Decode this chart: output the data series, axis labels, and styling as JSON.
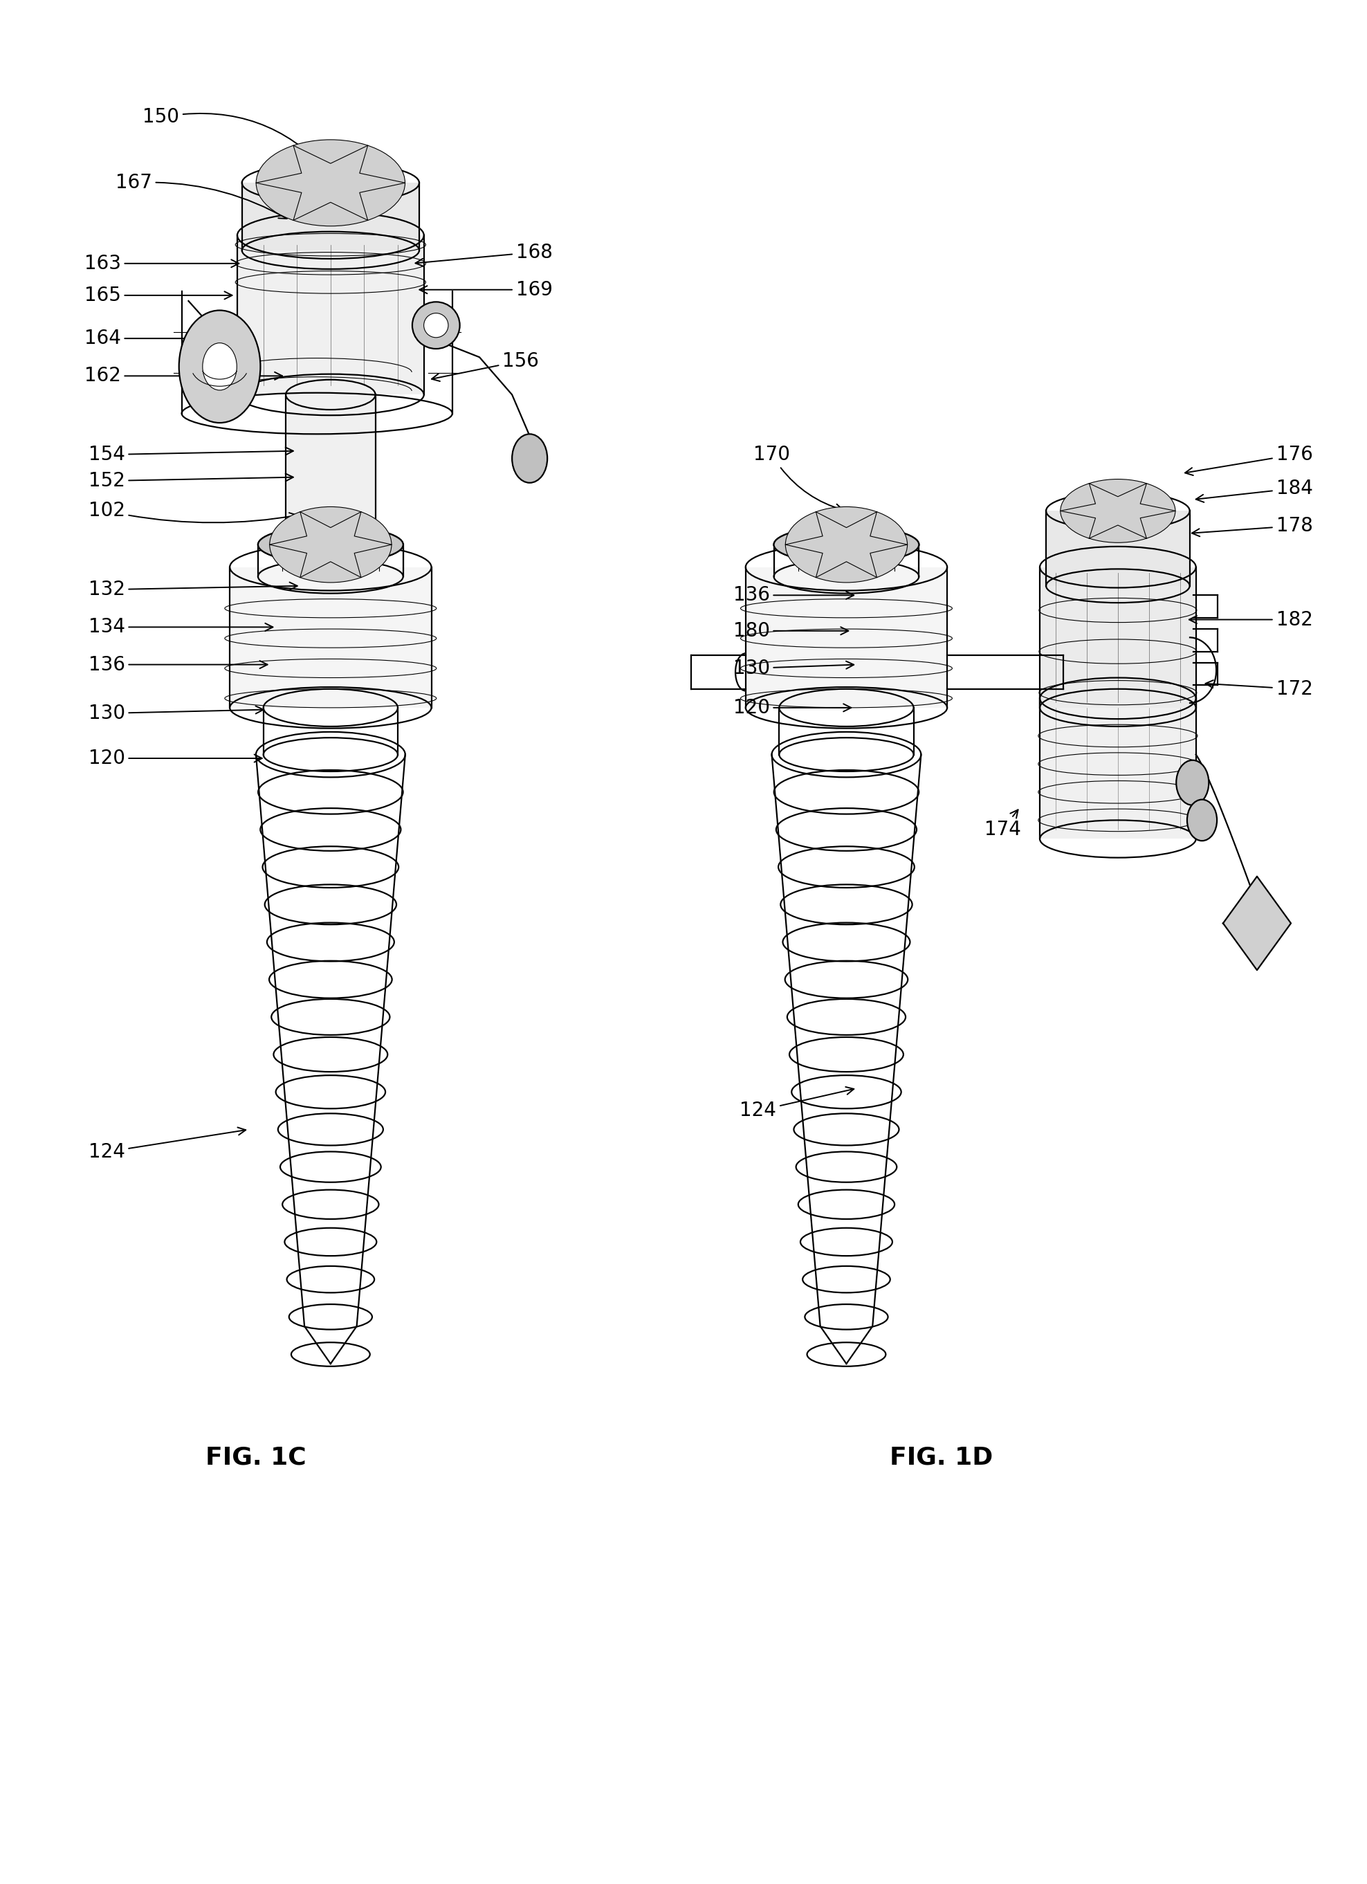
{
  "background_color": "#ffffff",
  "fig_width": 19.76,
  "fig_height": 27.23,
  "fig_label_1c": "FIG. 1C",
  "fig_label_1d": "FIG. 1D",
  "fig_label_fontsize": 26,
  "fig_label_fontweight": "bold",
  "annotation_fontsize": 20,
  "line_color": "#000000",
  "lw_main": 1.6,
  "lw_thin": 0.8,
  "lw_thick": 2.2
}
